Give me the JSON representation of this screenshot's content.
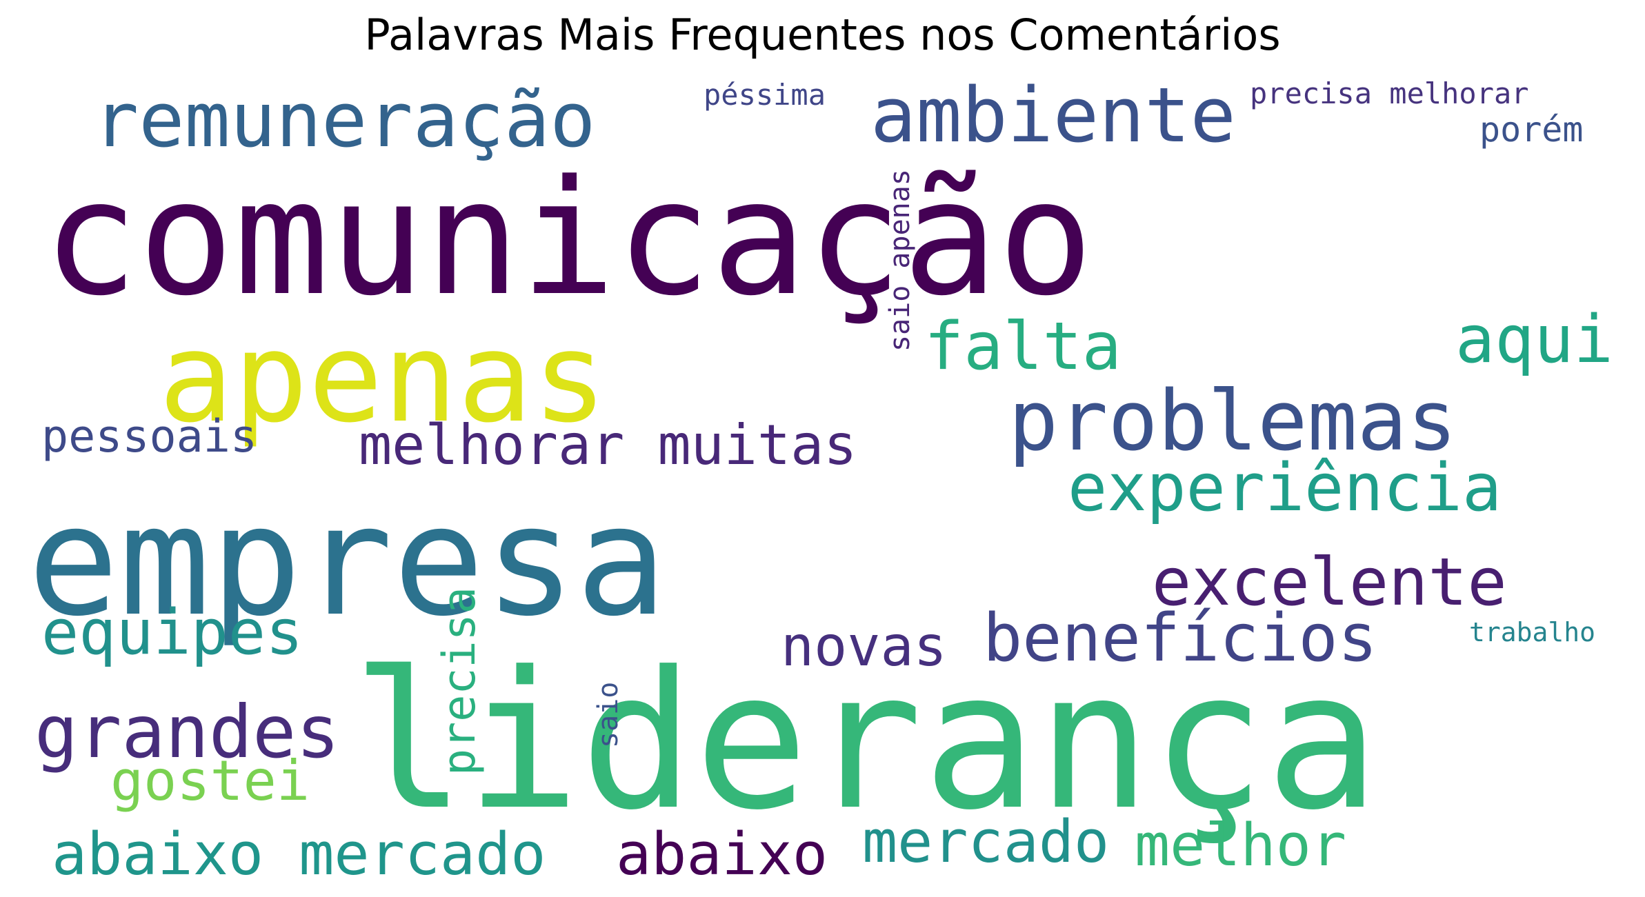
{
  "chart_data": {
    "type": "wordcloud",
    "title": "Palavras Mais Frequentes nos Comentários",
    "background": "#ffffff",
    "colormap": "viridis",
    "words": [
      {
        "text": "comunicação",
        "color": "#440154"
      },
      {
        "text": "empresa",
        "color": "#2c728e"
      },
      {
        "text": "liderança",
        "color": "#35b779"
      },
      {
        "text": "apenas",
        "color": "#dde318"
      },
      {
        "text": "problemas",
        "color": "#3b528b"
      },
      {
        "text": "remuneração",
        "color": "#33638d"
      },
      {
        "text": "ambiente",
        "color": "#3b528b"
      },
      {
        "text": "falta",
        "color": "#27ad81"
      },
      {
        "text": "aqui",
        "color": "#21a685"
      },
      {
        "text": "experiência",
        "color": "#1f9e89"
      },
      {
        "text": "excelente",
        "color": "#481f70"
      },
      {
        "text": "benefícios",
        "color": "#414487"
      },
      {
        "text": "melhorar muitas",
        "color": "#482878"
      },
      {
        "text": "pessoais",
        "color": "#3e4a89"
      },
      {
        "text": "equipes",
        "color": "#21918c"
      },
      {
        "text": "grandes",
        "color": "#472d7b"
      },
      {
        "text": "novas",
        "color": "#46307e"
      },
      {
        "text": "gostei",
        "color": "#7ad151"
      },
      {
        "text": "precisa",
        "color": "#2ab07f"
      },
      {
        "text": "saio",
        "color": "#3b528b"
      },
      {
        "text": "abaixo mercado",
        "color": "#1f958b"
      },
      {
        "text": "abaixo",
        "color": "#440154"
      },
      {
        "text": "mercado",
        "color": "#21918c"
      },
      {
        "text": "melhor",
        "color": "#35b779"
      },
      {
        "text": "porém",
        "color": "#3b528b"
      },
      {
        "text": "péssima",
        "color": "#404688"
      },
      {
        "text": "precisa melhorar",
        "color": "#46337e"
      },
      {
        "text": "saio apenas",
        "color": "#482576"
      },
      {
        "text": "trabalho",
        "color": "#25848e"
      }
    ]
  }
}
